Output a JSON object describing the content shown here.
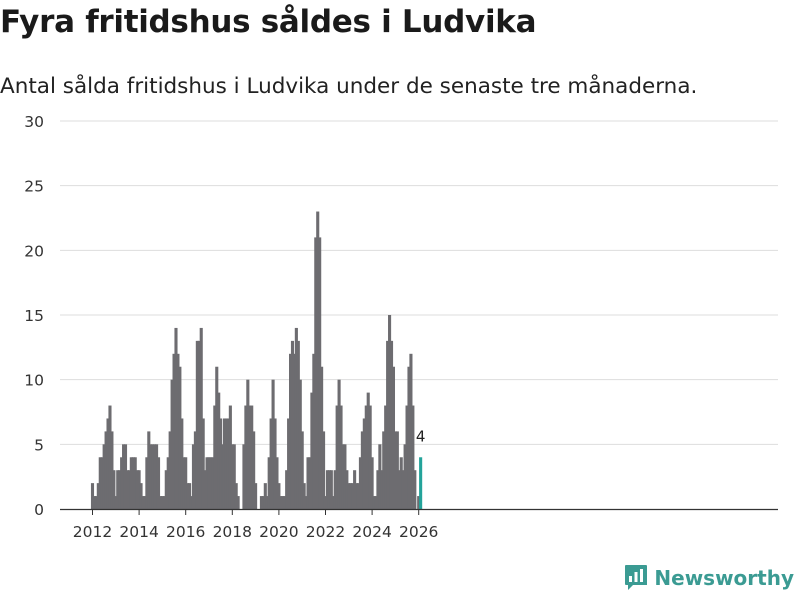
{
  "title": "Fyra fritidshus såldes i Ludvika",
  "subtitle": "Antal sålda fritidshus i Ludvika under de senaste tre månaderna.",
  "brand": {
    "name": "Newsworthy",
    "logo_icon": "newsworthy-logo-icon",
    "color": "#3b9b93"
  },
  "chart_data": {
    "type": "bar",
    "title": "Fyra fritidshus såldes i Ludvika",
    "xlabel": "",
    "ylabel": "",
    "ylim": [
      0,
      30
    ],
    "yticks": [
      0,
      5,
      10,
      15,
      20,
      25,
      30
    ],
    "xticks": [
      "2012",
      "2014",
      "2016",
      "2018",
      "2020",
      "2022",
      "2024",
      "2026"
    ],
    "x_start": "2012-01",
    "x_end": "2026-01",
    "grid": true,
    "bar_color": "#6d6c70",
    "highlight_color": "#23a39a",
    "highlight_label": "4",
    "values": [
      2,
      1,
      1,
      2,
      4,
      4,
      5,
      6,
      7,
      8,
      6,
      3,
      1,
      3,
      3,
      4,
      5,
      5,
      3,
      3,
      4,
      4,
      4,
      3,
      3,
      2,
      1,
      1,
      4,
      6,
      5,
      5,
      5,
      5,
      4,
      1,
      1,
      1,
      3,
      4,
      6,
      10,
      12,
      14,
      12,
      11,
      7,
      4,
      4,
      2,
      2,
      1,
      5,
      6,
      13,
      13,
      14,
      7,
      3,
      4,
      4,
      4,
      4,
      8,
      11,
      9,
      7,
      5,
      7,
      7,
      7,
      8,
      5,
      5,
      2,
      1,
      0,
      0,
      5,
      8,
      10,
      8,
      8,
      6,
      2,
      0,
      0,
      1,
      1,
      2,
      1,
      4,
      7,
      10,
      7,
      4,
      2,
      1,
      1,
      1,
      3,
      7,
      12,
      13,
      12,
      14,
      13,
      10,
      6,
      2,
      1,
      4,
      4,
      9,
      12,
      21,
      23,
      21,
      11,
      6,
      1,
      3,
      3,
      3,
      1,
      3,
      8,
      10,
      8,
      5,
      5,
      3,
      2,
      2,
      2,
      3,
      2,
      2,
      4,
      6,
      7,
      8,
      9,
      8,
      4,
      1,
      1,
      3,
      5,
      3,
      6,
      8,
      13,
      15,
      13,
      11,
      6,
      6,
      3,
      4,
      3,
      5,
      8,
      11,
      12,
      8,
      3,
      0,
      1,
      4
    ]
  }
}
